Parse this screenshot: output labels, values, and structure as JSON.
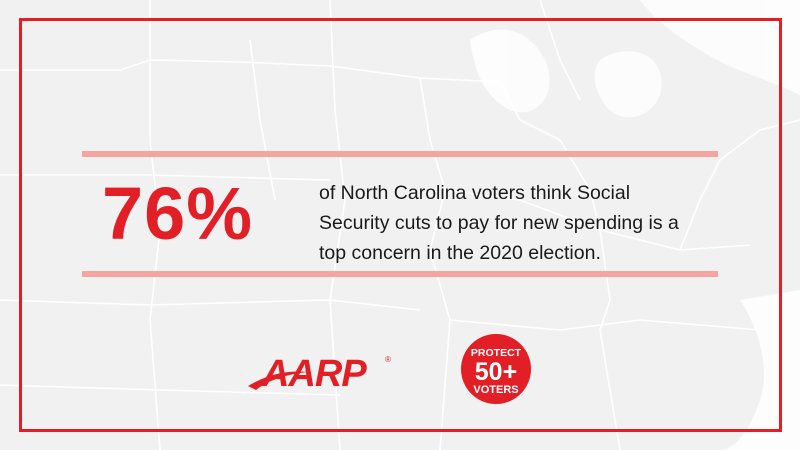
{
  "colors": {
    "accent": "#e21f26",
    "rule": "#f4a5a0",
    "background": "#f1f1f1",
    "map_lines": "#ffffff",
    "text": "#1a1a1a"
  },
  "stat": {
    "value": "76%"
  },
  "caption": {
    "lines": [
      "of North Carolina voters think Social",
      "Security cuts to pay for new spending is a",
      "top concern in the 2020 election."
    ]
  },
  "logos": {
    "aarp": "AARP",
    "aarp_mark": "®",
    "badge_line1": "PROTECT",
    "badge_line2": "50+",
    "badge_line3": "VOTERS"
  },
  "icons": {
    "background": "us-map-outline",
    "aarp": "aarp-logo",
    "badge": "protect-voters-badge"
  }
}
